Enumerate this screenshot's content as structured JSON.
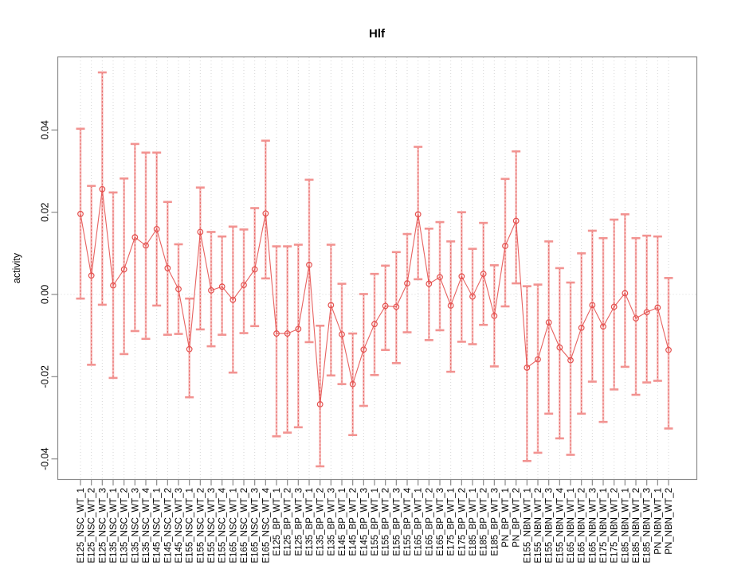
{
  "title": "Hlf",
  "colors": {
    "series": "#e4514f",
    "band": "rgba(242,140,138,0.55)",
    "cap": "#f29391",
    "grid": "#d6d6d6",
    "axis": "#8a8a8a",
    "text": "#000000",
    "background": "#ffffff"
  },
  "chart_data": {
    "type": "scatter",
    "title": "Hlf",
    "xlabel": "",
    "ylabel": "activity",
    "ylim": [
      -0.0451,
      0.0577
    ],
    "yticks": [
      -0.04,
      -0.02,
      0,
      0.02,
      0.04
    ],
    "grid": {
      "vertical_dotted_per_category": true,
      "dotted_zero_line": true
    },
    "legend": "none",
    "marker": "open-circle",
    "connect_points": true,
    "error_bars": true,
    "categories": [
      "E125_NSC_WT_1",
      "E125_NSC_WT_2",
      "E125_NSC_WT_3",
      "E135_NSC_WT_1",
      "E135_NSC_WT_2",
      "E135_NSC_WT_3",
      "E135_NSC_WT_4",
      "E145_NSC_WT_1",
      "E145_NSC_WT_2",
      "E145_NSC_WT_3",
      "E155_NSC_WT_1",
      "E155_NSC_WT_2",
      "E155_NSC_WT_3",
      "E155_NSC_WT_4",
      "E165_NSC_WT_1",
      "E165_NSC_WT_2",
      "E165_NSC_WT_3",
      "E165_NSC_WT_4",
      "E125_BP_WT_1",
      "E125_BP_WT_2",
      "E125_BP_WT_3",
      "E135_BP_WT_1",
      "E135_BP_WT_2",
      "E135_BP_WT_3",
      "E145_BP_WT_1",
      "E145_BP_WT_2",
      "E145_BP_WT_3",
      "E155_BP_WT_1",
      "E155_BP_WT_2",
      "E155_BP_WT_3",
      "E155_BP_WT_4",
      "E165_BP_WT_1",
      "E165_BP_WT_2",
      "E165_BP_WT_3",
      "E175_BP_WT_1",
      "E175_BP_WT_2",
      "E185_BP_WT_1",
      "E185_BP_WT_2",
      "E185_BP_WT_3",
      "PN_BP_WT_1",
      "PN_BP_WT_2",
      "E155_NBN_WT_1",
      "E155_NBN_WT_2",
      "E155_NBN_WT_3",
      "E155_NBN_WT_4",
      "E165_NBN_WT_1",
      "E165_NBN_WT_2",
      "E165_NBN_WT_3",
      "E175_NBN_WT_1",
      "E175_NBN_WT_2",
      "E185_NBN_WT_1",
      "E185_NBN_WT_2",
      "E185_NBN_WT_3",
      "PN_NBN_WT_1",
      "PN_NBN_WT_2"
    ],
    "series": [
      {
        "name": "activity",
        "values": [
          0.0196,
          0.0046,
          0.0256,
          0.0022,
          0.0061,
          0.0139,
          0.0119,
          0.0159,
          0.0064,
          0.0013,
          -0.0133,
          0.0152,
          0.001,
          0.0019,
          -0.0013,
          0.0023,
          0.0061,
          0.0197,
          -0.0095,
          -0.0095,
          -0.0084,
          0.0072,
          -0.0267,
          -0.0026,
          -0.0097,
          -0.0218,
          -0.0134,
          -0.0072,
          -0.0028,
          -0.003,
          0.0027,
          0.0195,
          0.0026,
          0.0042,
          -0.0027,
          0.0044,
          -0.0005,
          0.005,
          -0.0052,
          0.0118,
          0.0179,
          -0.0178,
          -0.0158,
          -0.0068,
          -0.0129,
          -0.016,
          -0.0081,
          -0.0026,
          -0.0078,
          -0.003,
          0.0003,
          -0.0058,
          -0.0043,
          -0.0032,
          -0.0135
        ],
        "upper": [
          0.0403,
          0.0264,
          0.054,
          0.0248,
          0.0282,
          0.0366,
          0.0345,
          0.0345,
          0.0225,
          0.0122,
          -0.001,
          0.026,
          0.0152,
          0.0141,
          0.0165,
          0.0158,
          0.021,
          0.0374,
          0.0117,
          0.0117,
          0.0121,
          0.0279,
          -0.0076,
          0.0121,
          0.0026,
          -0.0095,
          0.0001,
          0.005,
          0.007,
          0.0103,
          0.0147,
          0.0359,
          0.016,
          0.0176,
          0.0129,
          0.02,
          0.0111,
          0.0174,
          0.0071,
          0.0281,
          0.0348,
          0.002,
          0.0024,
          0.0129,
          0.0064,
          0.0029,
          0.01,
          0.0155,
          0.0137,
          0.0182,
          0.0195,
          0.0137,
          0.0143,
          0.0141,
          0.004
        ],
        "lower": [
          -0.001,
          -0.0171,
          -0.0025,
          -0.0203,
          -0.0145,
          -0.0089,
          -0.0108,
          -0.0027,
          -0.0098,
          -0.0096,
          -0.025,
          -0.0085,
          -0.0126,
          -0.0098,
          -0.019,
          -0.0094,
          -0.0077,
          0.0039,
          -0.0345,
          -0.0336,
          -0.0323,
          -0.0116,
          -0.0418,
          -0.0197,
          -0.0218,
          -0.0342,
          -0.0271,
          -0.0196,
          -0.0135,
          -0.0167,
          -0.0092,
          0.0037,
          -0.0111,
          -0.0087,
          -0.0188,
          -0.0115,
          -0.0121,
          -0.0074,
          -0.0175,
          -0.0029,
          0.0027,
          -0.0405,
          -0.0385,
          -0.029,
          -0.035,
          -0.039,
          -0.029,
          -0.0212,
          -0.031,
          -0.0231,
          -0.0176,
          -0.0244,
          -0.0214,
          -0.021,
          -0.0326
        ]
      }
    ]
  }
}
